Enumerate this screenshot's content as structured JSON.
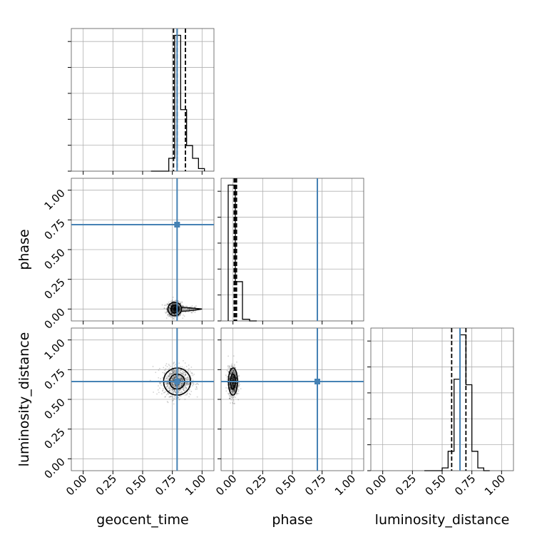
{
  "chart_data": {
    "type": "corner",
    "parameters": [
      "geocent_time",
      "phase",
      "luminosity_distance"
    ],
    "axis_range": [
      -0.1,
      1.1
    ],
    "tick_values": [
      0.0,
      0.25,
      0.5,
      0.75,
      1.0
    ],
    "tick_labels": [
      "0.00",
      "0.25",
      "0.50",
      "0.75",
      "1.00"
    ],
    "grid": true,
    "colors": {
      "truth": "#4682b4",
      "histogram": "#000000",
      "scatter": "#000000",
      "quantile": "#000000"
    },
    "truths": {
      "geocent_time": 0.79,
      "phase": 0.71,
      "luminosity_distance": 0.65
    },
    "quantiles": {
      "geocent_time": [
        0.76,
        0.79,
        0.86
      ],
      "phase": [
        0.01,
        0.02,
        0.03
      ],
      "luminosity_distance": [
        0.58,
        0.65,
        0.7
      ]
    },
    "histograms": {
      "geocent_time": {
        "bin_edges": [
          0.57,
          0.62,
          0.67,
          0.72,
          0.77,
          0.82,
          0.87,
          0.92,
          0.97,
          1.02
        ],
        "counts": [
          0,
          0,
          0,
          5,
          53,
          24,
          10,
          5,
          1
        ]
      },
      "phase": {
        "bin_edges": [
          -0.04,
          0.02,
          0.08,
          0.14,
          0.2
        ],
        "counts": [
          83,
          24,
          1,
          0
        ]
      },
      "luminosity_distance": {
        "bin_edges": [
          0.35,
          0.4,
          0.45,
          0.5,
          0.55,
          0.6,
          0.65,
          0.7,
          0.75,
          0.8,
          0.85,
          0.9
        ],
        "counts": [
          0,
          0,
          0,
          1,
          7,
          33,
          49,
          31,
          7,
          1,
          0
        ]
      }
    },
    "scatter_2d": [
      {
        "x": "geocent_time",
        "y": "phase",
        "center": [
          0.77,
          0.0
        ],
        "spread": [
          0.03,
          0.03
        ],
        "tail_to_x": 0.95
      },
      {
        "x": "geocent_time",
        "y": "luminosity_distance",
        "center": [
          0.79,
          0.65
        ],
        "spread": [
          0.06,
          0.06
        ]
      },
      {
        "x": "phase",
        "y": "luminosity_distance",
        "center": [
          0.0,
          0.65
        ],
        "spread": [
          0.02,
          0.06
        ]
      }
    ]
  }
}
